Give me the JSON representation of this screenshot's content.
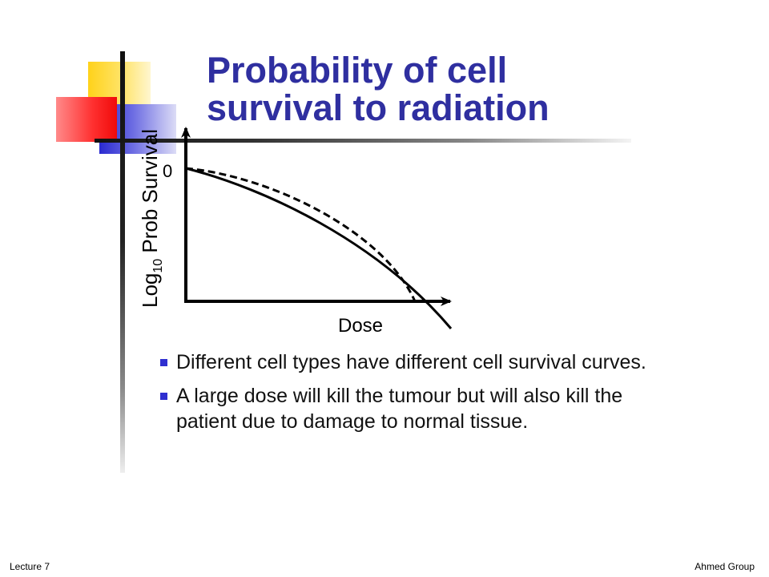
{
  "slide": {
    "title_lines": [
      "Probability of cell",
      "survival to radiation"
    ],
    "bullets": [
      "Different cell types have different cell survival curves.",
      "A large dose will kill the tumour but will also kill the patient due to damage to normal tissue."
    ],
    "footer": {
      "left": "Lecture 7",
      "right": "Ahmed Group"
    },
    "colors": {
      "title": "#2f2fa0",
      "bullet": "#2f2fd0",
      "accent_yellow": "#ffd21a",
      "accent_red": "#ff3030",
      "accent_blue": "#2a2ad0"
    }
  },
  "figure": {
    "y_label_prefix": "Log",
    "y_label_subscript": "10",
    "y_label_suffix": " Prob Survival",
    "x_label": "Dose",
    "zero_label": "0",
    "curves": [
      {
        "style": "solid",
        "description_shape": "concave down, steeper at high dose"
      },
      {
        "style": "dashed",
        "description_shape": "concave down"
      }
    ]
  }
}
